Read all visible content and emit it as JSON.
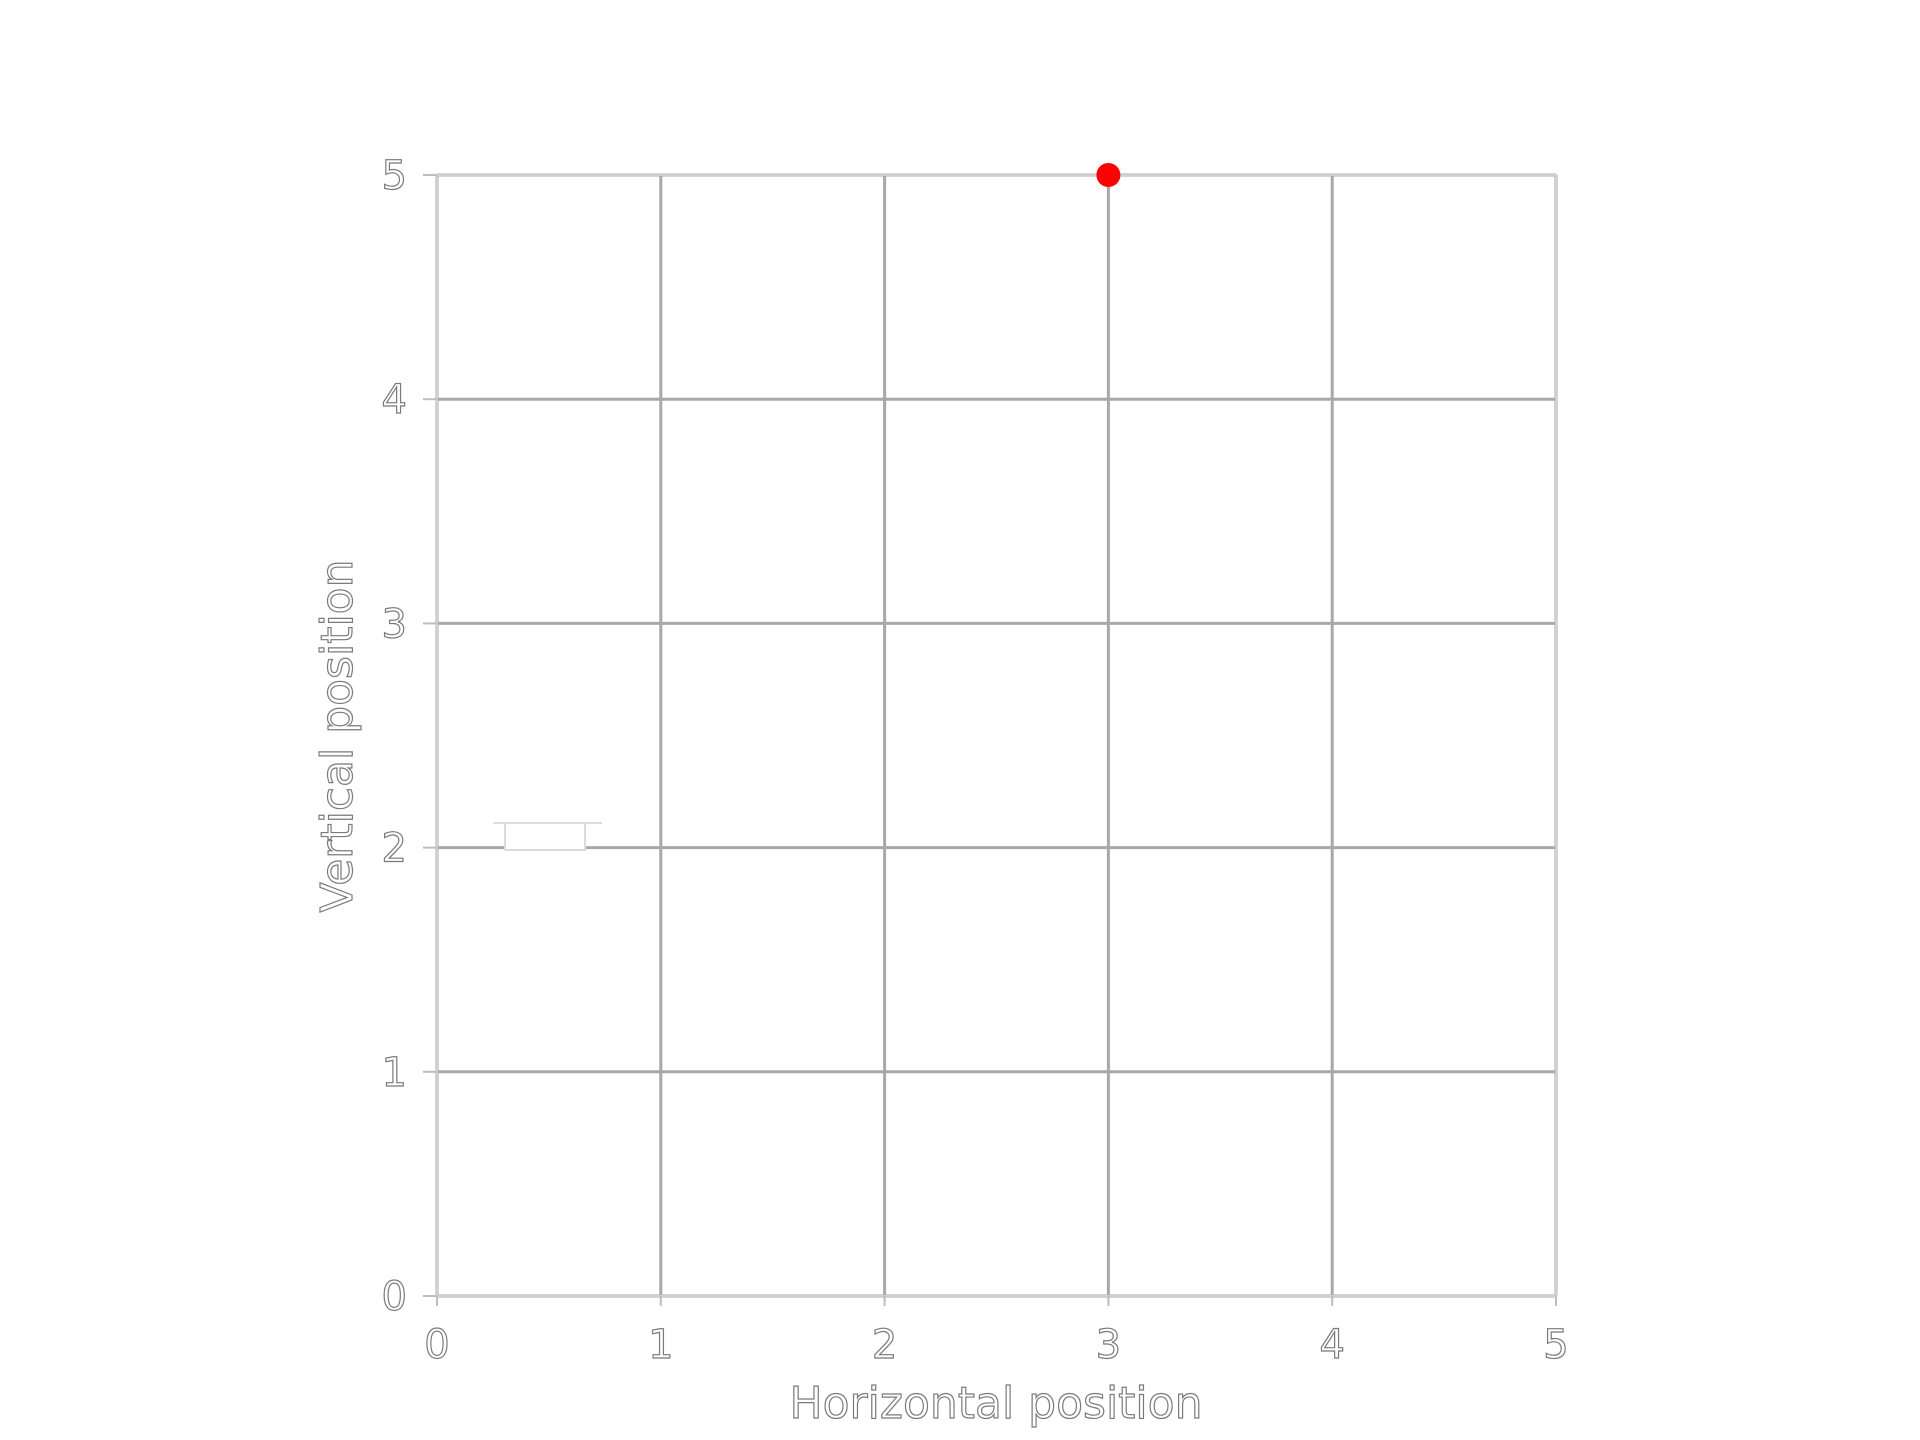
{
  "chart_data": {
    "type": "scatter",
    "title": "",
    "xlabel": "Horizontal position",
    "ylabel": "Vertical position",
    "xlim": [
      0,
      5
    ],
    "ylim": [
      0,
      5
    ],
    "xticks": [
      "0",
      "1",
      "2",
      "3",
      "4",
      "5"
    ],
    "yticks": [
      "0",
      "1",
      "2",
      "3",
      "4",
      "5"
    ],
    "grid": true,
    "legend": "left",
    "series": [
      {
        "x": [
          3
        ],
        "y": [
          5
        ],
        "color": "#ff0000"
      }
    ]
  }
}
